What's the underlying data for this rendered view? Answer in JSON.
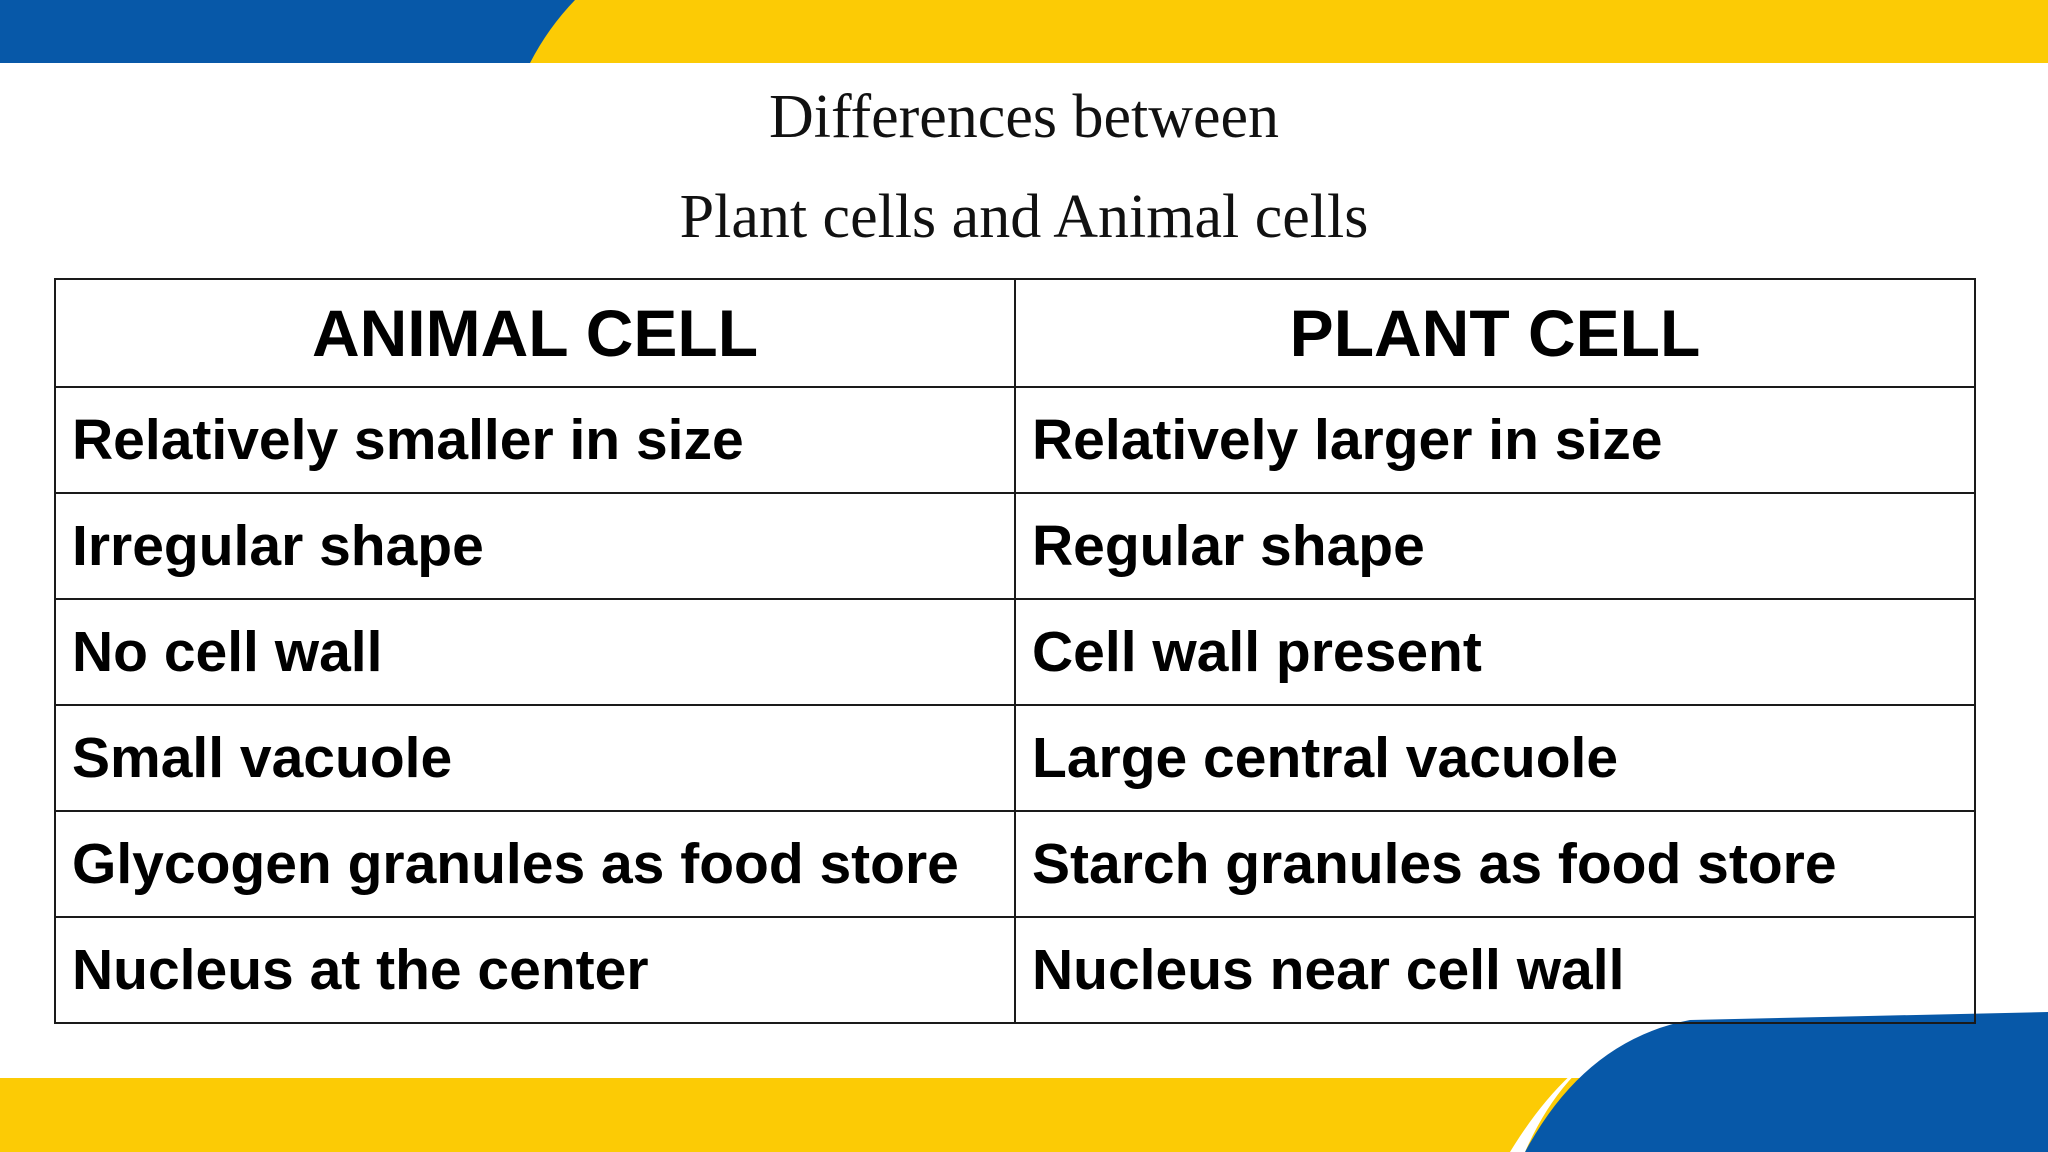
{
  "slide": {
    "title_line1": "Differences between",
    "title_line2": "Plant cells and Animal cells",
    "colors": {
      "accent_blue": "#0758a8",
      "accent_yellow": "#fccb05",
      "border": "#1a1a1a",
      "background": "#ffffff"
    }
  },
  "table": {
    "headers": [
      "ANIMAL CELL",
      "PLANT CELL"
    ],
    "rows": [
      [
        "Relatively smaller in size",
        "Relatively larger in size"
      ],
      [
        "Irregular shape",
        "Regular shape"
      ],
      [
        "No cell wall",
        "Cell wall present"
      ],
      [
        "Small vacuole",
        "Large central vacuole"
      ],
      [
        "Glycogen granules as food store",
        "Starch granules as food store"
      ],
      [
        "Nucleus at the center",
        "Nucleus near cell wall"
      ]
    ]
  }
}
